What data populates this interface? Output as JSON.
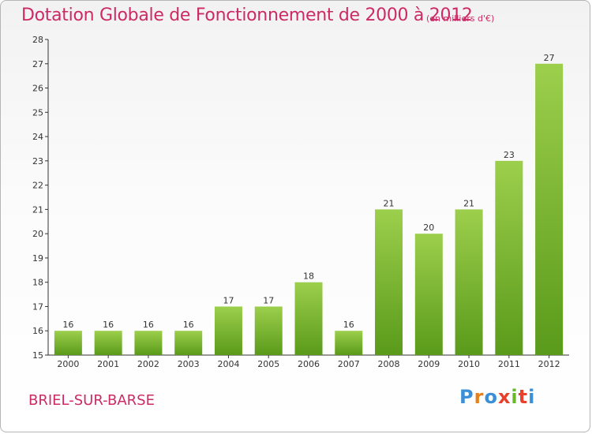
{
  "header": {
    "title": "Dotation Globale de Fonctionnement de 2000 à 2012",
    "unit": "(en milliers d'€)"
  },
  "footer": {
    "commune": "BRIEL-SUR-BARSE",
    "logo_letters": [
      "P",
      "r",
      "o",
      "x",
      "i",
      "t",
      "i"
    ],
    "logo_colors": [
      "#3a8fd6",
      "#e8801a",
      "#3a8fd6",
      "#e8402a",
      "#6ab82a",
      "#e8402a",
      "#3a8fd6"
    ]
  },
  "colors": {
    "accent": "#cc2a64",
    "bar_top": "#9ccf4c",
    "bar_bottom": "#5a9a1a"
  },
  "chart_data": {
    "type": "bar",
    "categories": [
      "2000",
      "2001",
      "2002",
      "2003",
      "2004",
      "2005",
      "2006",
      "2007",
      "2008",
      "2009",
      "2010",
      "2011",
      "2012"
    ],
    "values": [
      16,
      16,
      16,
      16,
      17,
      17,
      18,
      16,
      21,
      20,
      21,
      23,
      27
    ],
    "title": "Dotation Globale de Fonctionnement de 2000 à 2012",
    "xlabel": "",
    "ylabel": "",
    "ylim": [
      15,
      28
    ],
    "yticks": [
      15,
      16,
      17,
      18,
      19,
      20,
      21,
      22,
      23,
      24,
      25,
      26,
      27,
      28
    ],
    "grid": false,
    "legend": "none"
  }
}
